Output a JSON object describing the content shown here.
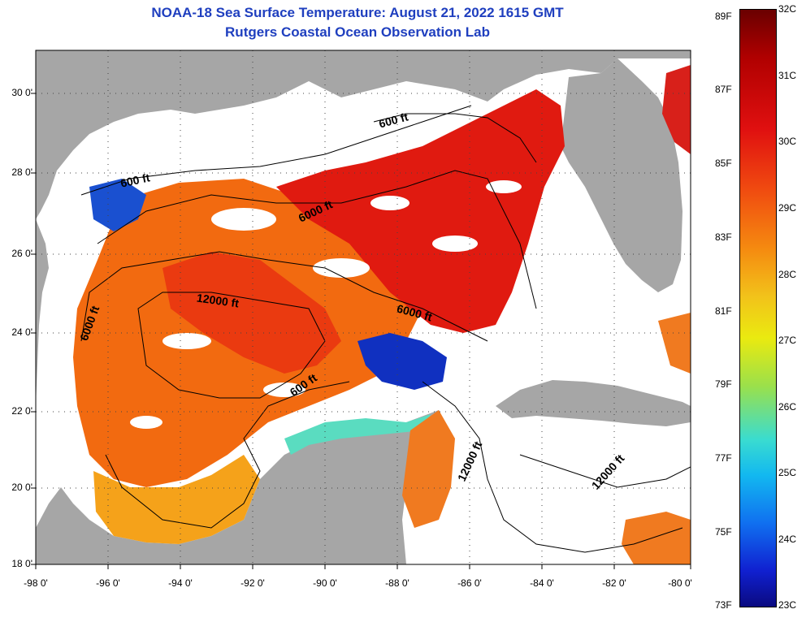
{
  "title": {
    "line1": "NOAA-18 Sea Surface Temperature:  August 21, 2022 1615 GMT",
    "line2": "Rutgers Coastal Ocean Observation Lab"
  },
  "axes": {
    "latitude_labels": [
      "30 0'",
      "28 0'",
      "26 0'",
      "24 0'",
      "22 0'",
      "20 0'",
      "18 0'"
    ],
    "longitude_labels": [
      "-98 0'",
      "-96 0'",
      "-94 0'",
      "-92 0'",
      "-90 0'",
      "-88 0'",
      "-86 0'",
      "-84 0'",
      "-82 0'",
      "-80 0'"
    ]
  },
  "contours": {
    "c600a": "600 ft",
    "c600b": "600 ft",
    "c600c": "600 ft",
    "c6000a": "6000 ft",
    "c6000b": "6000 ft",
    "c6000c": "6000 ft",
    "c12000a": "12000 ft",
    "c12000b": "12000 ft",
    "c12000c": "12000 ft"
  },
  "colorbar": {
    "fahrenheit": [
      "89F",
      "87F",
      "85F",
      "83F",
      "81F",
      "79F",
      "77F",
      "75F",
      "73F"
    ],
    "celsius": [
      "32C",
      "31C",
      "30C",
      "29C",
      "28C",
      "27C",
      "26C",
      "25C",
      "24C",
      "23C"
    ]
  },
  "colors": {
    "land": "#a6a6a6",
    "cloud": "#ffffff",
    "hot": "#e01a10",
    "warm": "#f26a10",
    "cool": "#1030c0"
  }
}
